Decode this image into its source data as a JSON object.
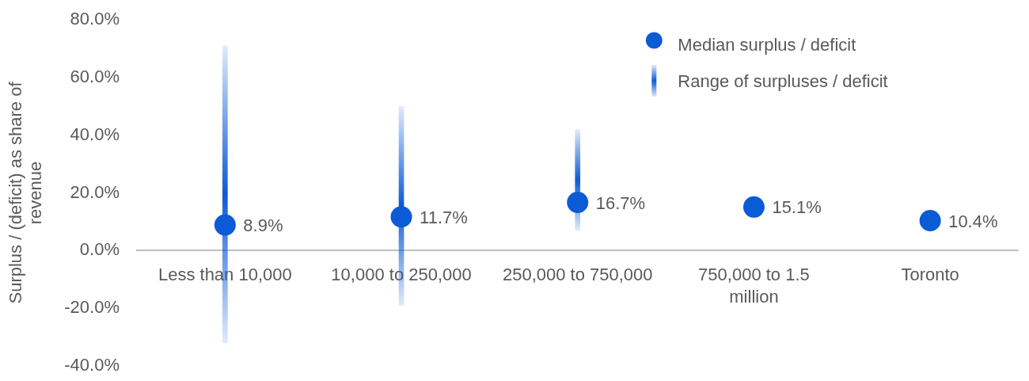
{
  "chart_data": {
    "type": "bar",
    "categories": [
      "Less than 10,000",
      "10,000 to 250,000",
      "250,000 to 750,000",
      "750,000 to 1.5 million",
      "Toronto"
    ],
    "ylabel": "Surplus / (deficit) as share of revenue",
    "ylim": [
      -40,
      80
    ],
    "yticks": [
      {
        "value": -40,
        "label": "-40.0%"
      },
      {
        "value": -20,
        "label": "-20.0%"
      },
      {
        "value": 0,
        "label": "0.0%"
      },
      {
        "value": 20,
        "label": "20.0%"
      },
      {
        "value": 40,
        "label": "40.0%"
      },
      {
        "value": 60,
        "label": "60.0%"
      },
      {
        "value": 80,
        "label": "80.0%"
      }
    ],
    "legend": "top right",
    "marker": "circle",
    "series": [
      {
        "name": "Median surplus / deficit",
        "type": "scatter",
        "color": "#0b5ad6",
        "values": [
          8.9,
          11.7,
          16.7,
          15.1,
          10.4
        ],
        "value_labels": [
          "8.9%",
          "11.7%",
          "16.7%",
          "15.1%",
          "10.4%"
        ]
      },
      {
        "name": "Range of surpluses / deficit",
        "color": "#0b5ad6",
        "base": [
          -32,
          -19,
          7,
          null,
          null
        ],
        "values": [
          103,
          69,
          35,
          null,
          null
        ]
      }
    ]
  }
}
